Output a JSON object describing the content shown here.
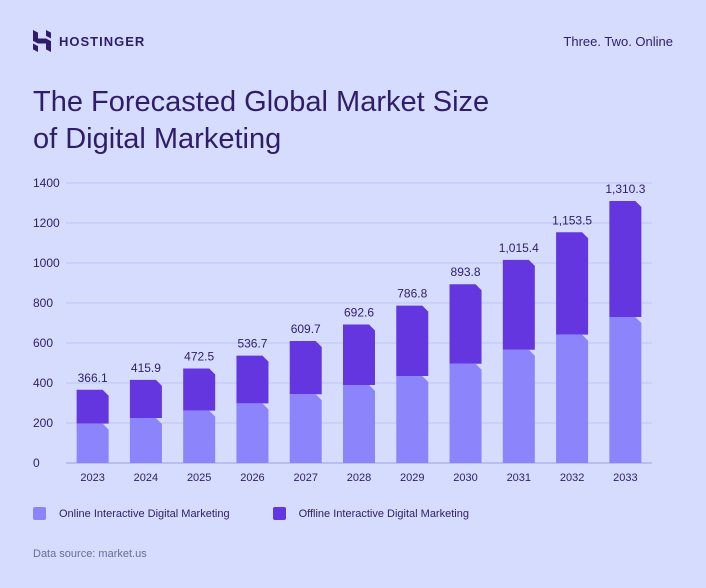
{
  "brand": {
    "name": "HOSTINGER",
    "tagline": "Three. Two. Online"
  },
  "title": "The Forecasted Global Market Size of Digital Marketing",
  "source": "Data source: market.us",
  "colors": {
    "background": "#d6dcfd",
    "online": "#8b84fb",
    "offline": "#6436e0",
    "text": "#2f1c6a",
    "grid": "#bcc3f5"
  },
  "chart_data": {
    "type": "bar",
    "stacked": true,
    "categories": [
      "2023",
      "2024",
      "2025",
      "2026",
      "2027",
      "2028",
      "2029",
      "2030",
      "2031",
      "2032",
      "2033"
    ],
    "series": [
      {
        "name": "Online Interactive Digital Marketing",
        "values": [
          197,
          225,
          262,
          298,
          344,
          390,
          435,
          496,
          566,
          642,
          730
        ]
      },
      {
        "name": "Offline Interactive Digital Marketing",
        "values": [
          169.1,
          190.9,
          210.5,
          238.7,
          265.7,
          302.6,
          351.8,
          397.8,
          449.4,
          511.5,
          580.3
        ]
      }
    ],
    "totals": [
      366.1,
      415.9,
      472.5,
      536.7,
      609.7,
      692.6,
      786.8,
      893.8,
      1015.4,
      1153.5,
      1310.3
    ],
    "total_labels": [
      "366.1",
      "415.9",
      "472.5",
      "536.7",
      "609.7",
      "692.6",
      "786.8",
      "893.8",
      "1,015.4",
      "1,153.5",
      "1,310.3"
    ],
    "yticks": [
      "0",
      "200",
      "400",
      "600",
      "800",
      "1000",
      "1200",
      "1400"
    ],
    "ylim": [
      0,
      1400
    ],
    "grid": true,
    "legend_position": "bottom-left"
  }
}
